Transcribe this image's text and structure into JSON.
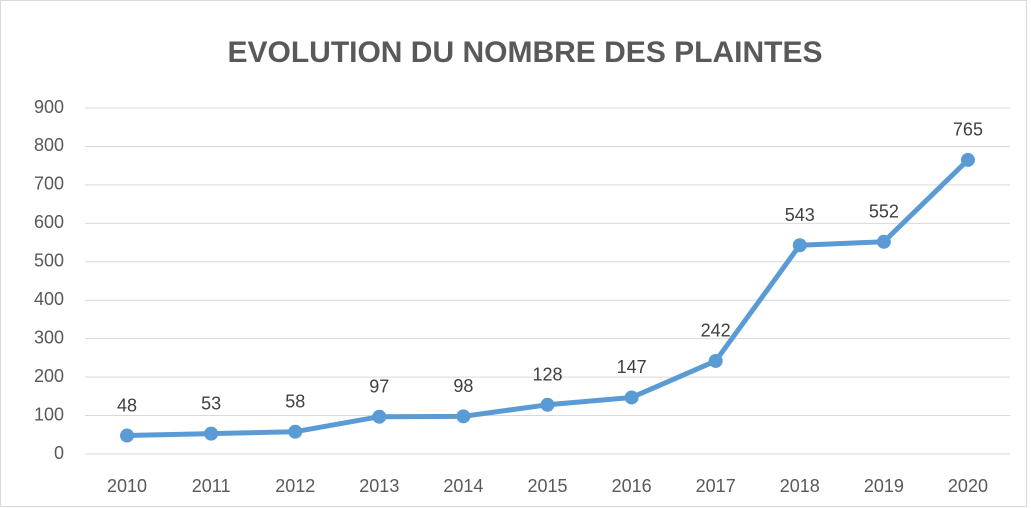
{
  "chart_data": {
    "type": "line",
    "title": "EVOLUTION DU NOMBRE DES PLAINTES",
    "categories": [
      "2010",
      "2011",
      "2012",
      "2013",
      "2014",
      "2015",
      "2016",
      "2017",
      "2018",
      "2019",
      "2020"
    ],
    "values": [
      48,
      53,
      58,
      97,
      98,
      128,
      147,
      242,
      543,
      552,
      765
    ],
    "color": "#5b9bd5",
    "ylim": [
      0,
      900
    ],
    "yticks": [
      0,
      100,
      200,
      300,
      400,
      500,
      600,
      700,
      800,
      900
    ],
    "grid": true
  }
}
